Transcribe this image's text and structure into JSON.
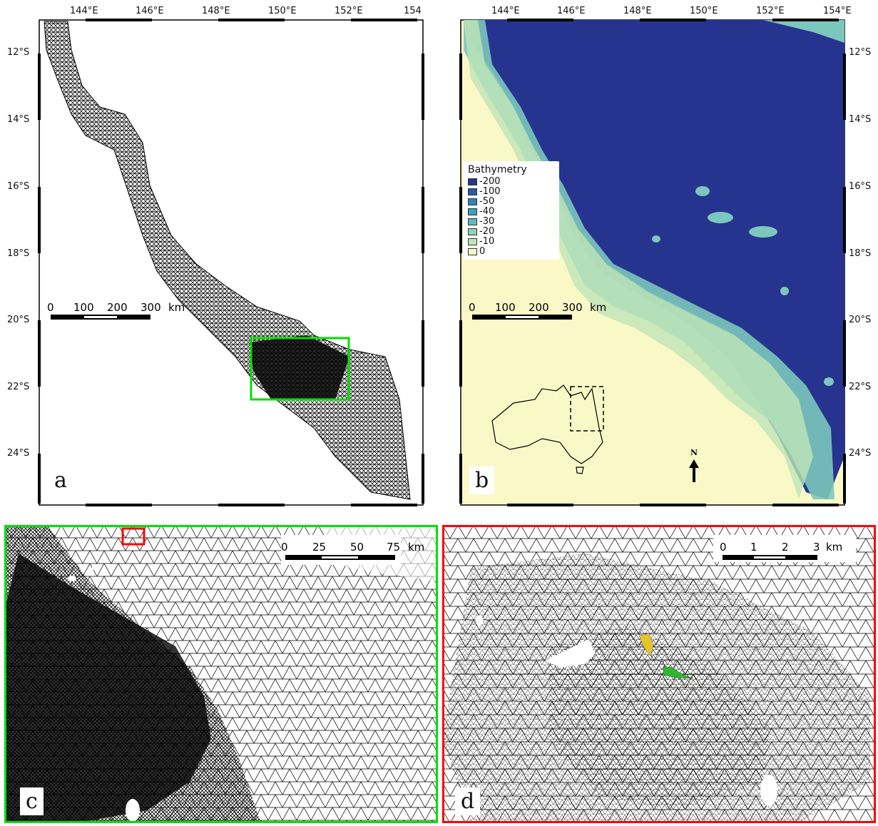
{
  "panels": {
    "a": {
      "letter": "a",
      "frame_color": "#000000",
      "inset_box_color": "#00e000"
    },
    "b": {
      "letter": "b",
      "frame_color": "#000000"
    },
    "c": {
      "letter": "c",
      "frame_color": "#00e000",
      "inset_box_color": "#ff0000"
    },
    "d": {
      "letter": "d",
      "frame_color": "#ff0000"
    }
  },
  "longitude_ticks": [
    "144°E",
    "146°E",
    "148°E",
    "150°E",
    "152°E",
    "154°E"
  ],
  "longitude_ticks_a": [
    "144°E",
    "146°E",
    "148°E",
    "150°E",
    "152°E",
    "154"
  ],
  "latitude_ticks": [
    "12°S",
    "14°S",
    "16°S",
    "18°S",
    "20°S",
    "22°S",
    "24°S"
  ],
  "scalebars": {
    "a": {
      "labels": [
        "0",
        "100",
        "200",
        "300",
        "km"
      ]
    },
    "b": {
      "labels": [
        "0",
        "100",
        "200",
        "300",
        "km"
      ]
    },
    "c": {
      "labels": [
        "0",
        "25",
        "50",
        "75",
        "km"
      ]
    },
    "d": {
      "labels": [
        "0",
        "1",
        "2",
        "3",
        "km"
      ]
    }
  },
  "legend": {
    "title": "Bathymetry",
    "items": [
      {
        "label": "-200",
        "color": "#26348f"
      },
      {
        "label": "-100",
        "color": "#2a5aa8"
      },
      {
        "label": "-50",
        "color": "#2f84b8"
      },
      {
        "label": "-40",
        "color": "#3aa0be"
      },
      {
        "label": "-30",
        "color": "#5bbcc0"
      },
      {
        "label": "-20",
        "color": "#8fd1bb"
      },
      {
        "label": "-10",
        "color": "#bfe5b8"
      },
      {
        "label": "0",
        "color": "#fbf8c8"
      }
    ]
  },
  "north_arrow": {
    "label": "N"
  },
  "colors": {
    "ocean_deep": "#26348f",
    "land": "#fbf8c8",
    "reef_shelf": "#7cc7bd",
    "mesh": "#000000",
    "reef_yellow": "#e6c52a",
    "reef_green": "#2fb82f"
  }
}
